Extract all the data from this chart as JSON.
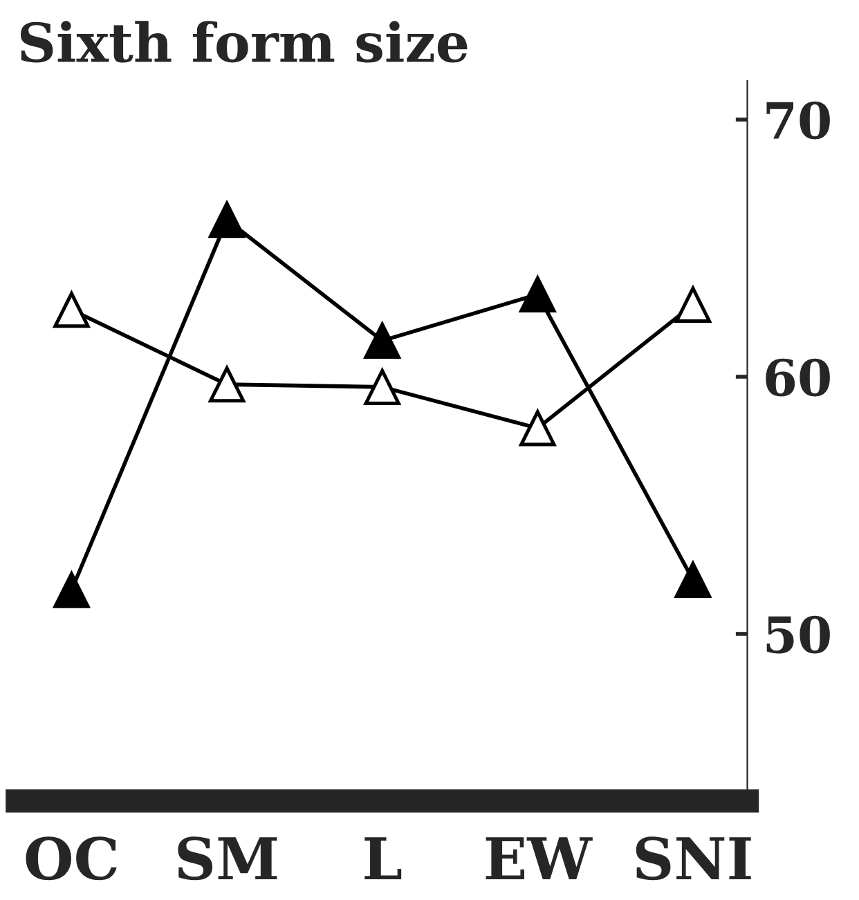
{
  "chart_data": {
    "type": "line",
    "title": "Sixth form size",
    "categories": [
      "OC",
      "SM",
      "L",
      "EW",
      "SNI"
    ],
    "series": [
      {
        "color": "#000000",
        "values": [
          51.7,
          66.1,
          61.4,
          63.2,
          52.1
        ]
      },
      {
        "color": "#ffffff",
        "values": [
          62.6,
          59.7,
          59.6,
          58.0,
          62.8
        ]
      }
    ],
    "ylim": [
      43.5,
      71.5
    ],
    "yticks": [
      50,
      60,
      70
    ],
    "marker": "triangle",
    "line_style": "solid",
    "grid": false
  }
}
